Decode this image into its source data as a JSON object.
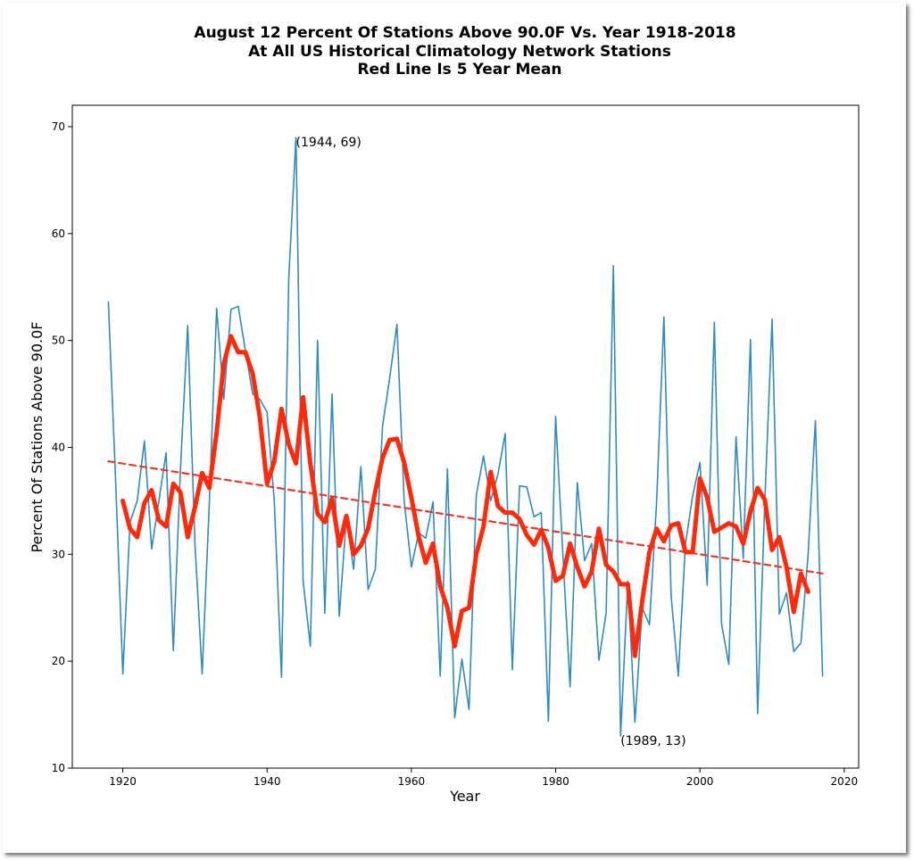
{
  "chart_data": {
    "type": "line",
    "title_lines": [
      "August 12 Percent Of Stations Above 90.0F Vs. Year 1918-2018",
      "At All US Historical Climatology Network Stations",
      "Red Line Is 5 Year Mean"
    ],
    "xlabel": "Year",
    "ylabel": "Percent Of Stations Above 90.0F",
    "xlim": [
      1913,
      2022
    ],
    "ylim": [
      10,
      72
    ],
    "xticks": [
      1920,
      1940,
      1960,
      1980,
      2000,
      2020
    ],
    "yticks": [
      10,
      20,
      30,
      40,
      50,
      60,
      70
    ],
    "grid": false,
    "legend": "none",
    "series": [
      {
        "style": "raw",
        "color": "#2e8bc0",
        "x": [
          1918,
          1919,
          1920,
          1921,
          1922,
          1923,
          1924,
          1925,
          1926,
          1927,
          1928,
          1929,
          1930,
          1931,
          1932,
          1933,
          1934,
          1935,
          1936,
          1937,
          1938,
          1939,
          1940,
          1941,
          1942,
          1943,
          1944,
          1945,
          1946,
          1947,
          1948,
          1949,
          1950,
          1951,
          1952,
          1953,
          1954,
          1955,
          1956,
          1957,
          1958,
          1959,
          1960,
          1961,
          1962,
          1963,
          1964,
          1965,
          1966,
          1967,
          1968,
          1969,
          1970,
          1971,
          1972,
          1973,
          1974,
          1975,
          1976,
          1977,
          1978,
          1979,
          1980,
          1981,
          1982,
          1983,
          1984,
          1985,
          1986,
          1987,
          1988,
          1989,
          1990,
          1991,
          1992,
          1993,
          1994,
          1995,
          1996,
          1997,
          1998,
          1999,
          2000,
          2001,
          2002,
          2003,
          2004,
          2005,
          2006,
          2007,
          2008,
          2009,
          2010,
          2011,
          2012,
          2013,
          2014,
          2015,
          2016,
          2017
        ],
        "y": [
          53.6,
          37.0,
          18.8,
          33.0,
          35.0,
          40.6,
          30.5,
          35.0,
          39.5,
          21.0,
          38.0,
          51.4,
          31.0,
          18.8,
          35.0,
          53.0,
          44.5,
          52.9,
          53.2,
          49.0,
          45.0,
          44.5,
          43.3,
          35.0,
          18.5,
          55.8,
          69.0,
          27.5,
          21.4,
          50.0,
          24.5,
          45.0,
          24.2,
          33.5,
          28.6,
          38.2,
          26.7,
          28.6,
          42.0,
          46.5,
          51.5,
          35.0,
          28.8,
          32.0,
          31.5,
          34.9,
          18.6,
          38.0,
          14.7,
          20.2,
          15.5,
          35.5,
          39.2,
          35.0,
          37.5,
          41.3,
          19.2,
          36.4,
          36.3,
          33.5,
          33.9,
          14.4,
          42.9,
          30.0,
          17.6,
          36.7,
          29.4,
          31.0,
          20.1,
          24.5,
          57.0,
          13.0,
          27.5,
          14.3,
          25.0,
          23.4,
          35.0,
          52.2,
          26.1,
          18.6,
          31.0,
          35.5,
          38.6,
          27.1,
          51.7,
          23.5,
          19.7,
          41.0,
          29.6,
          50.1,
          15.1,
          35.0,
          52.0,
          24.4,
          26.4,
          20.9,
          21.7,
          30.0,
          42.5,
          18.6
        ]
      },
      {
        "style": "5yr-mean",
        "color": "#ff2a0a",
        "x": [
          1920,
          1921,
          1922,
          1923,
          1924,
          1925,
          1926,
          1927,
          1928,
          1929,
          1930,
          1931,
          1932,
          1933,
          1934,
          1935,
          1936,
          1937,
          1938,
          1939,
          1940,
          1941,
          1942,
          1943,
          1944,
          1945,
          1946,
          1947,
          1948,
          1949,
          1950,
          1951,
          1952,
          1953,
          1954,
          1955,
          1956,
          1957,
          1958,
          1959,
          1960,
          1961,
          1962,
          1963,
          1964,
          1965,
          1966,
          1967,
          1968,
          1969,
          1970,
          1971,
          1972,
          1973,
          1974,
          1975,
          1976,
          1977,
          1978,
          1979,
          1980,
          1981,
          1982,
          1983,
          1984,
          1985,
          1986,
          1987,
          1988,
          1989,
          1990,
          1991,
          1992,
          1993,
          1994,
          1995,
          1996,
          1997,
          1998,
          1999,
          2000,
          2001,
          2002,
          2003,
          2004,
          2005,
          2006,
          2007,
          2008,
          2009,
          2010,
          2011,
          2012,
          2013,
          2014,
          2015
        ],
        "y": [
          35.0,
          32.4,
          31.6,
          34.8,
          36.0,
          33.2,
          32.6,
          36.6,
          35.8,
          31.6,
          34.4,
          37.6,
          36.2,
          41.4,
          47.8,
          50.4,
          48.9,
          48.9,
          46.9,
          42.8,
          36.6,
          38.7,
          43.6,
          40.3,
          38.5,
          44.7,
          38.5,
          33.8,
          33.0,
          35.2,
          30.8,
          33.6,
          30.0,
          30.8,
          32.4,
          35.9,
          39.0,
          40.7,
          40.8,
          38.6,
          35.3,
          31.7,
          29.2,
          31.0,
          27.0,
          25.0,
          21.4,
          24.7,
          25.0,
          30.0,
          32.6,
          37.7,
          34.5,
          33.9,
          33.9,
          33.3,
          31.8,
          30.9,
          32.3,
          30.6,
          27.5,
          28.0,
          31.0,
          28.8,
          27.0,
          28.4,
          32.4,
          29.0,
          28.4,
          27.2,
          27.2,
          20.5,
          25.6,
          30.2,
          32.4,
          31.2,
          32.7,
          32.9,
          30.2,
          30.2,
          37.1,
          35.3,
          32.1,
          32.5,
          32.9,
          32.6,
          31.0,
          34.0,
          36.2,
          35.1,
          30.4,
          31.6,
          28.8,
          24.6,
          28.2,
          26.5
        ]
      },
      {
        "style": "trend",
        "color": "#e8382a",
        "x": [
          1918,
          2017
        ],
        "y": [
          38.7,
          28.2
        ]
      }
    ],
    "annotations": [
      {
        "text": "(1944, 69)",
        "x": 1944,
        "y": 69
      },
      {
        "text": "(1989, 13)",
        "x": 1989,
        "y": 13
      }
    ]
  }
}
